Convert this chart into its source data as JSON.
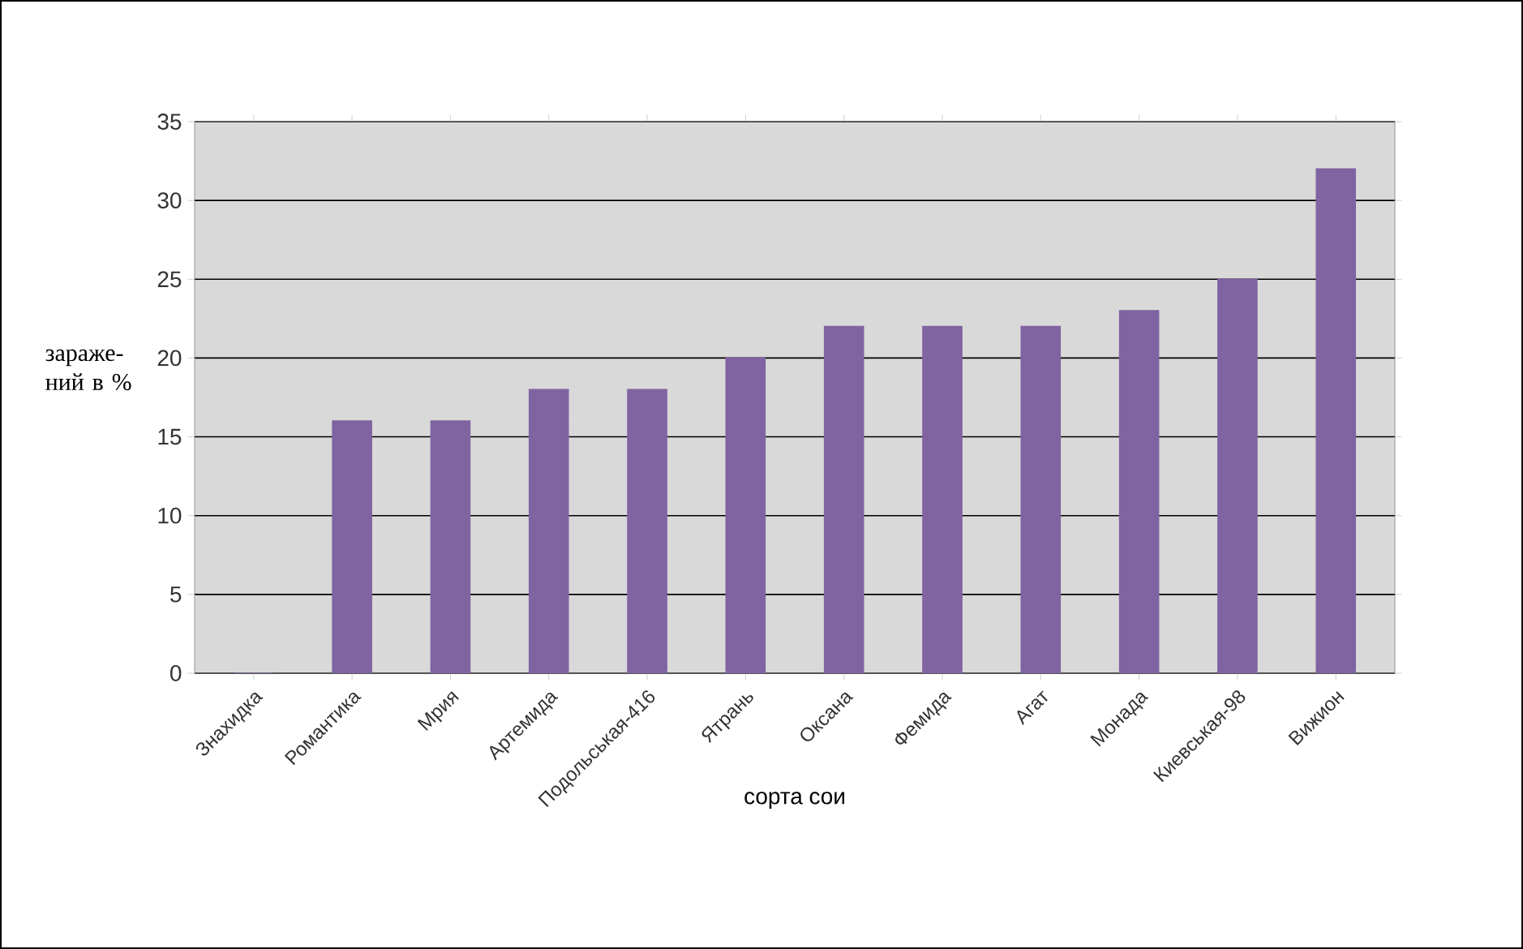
{
  "chart_data": {
    "type": "bar",
    "xlabel": "сорта сои",
    "ylabel": "зараже-ний в %",
    "categories": [
      "Знахидка",
      "Романтика",
      "Мрия",
      "Артемида",
      "Подольськая-416",
      "Ятрань",
      "Оксана",
      "Фемида",
      "Агат",
      "Монада",
      "Киевськая-98",
      "Вижион"
    ],
    "values": [
      0,
      16,
      16,
      18,
      18,
      20,
      22,
      22,
      22,
      23,
      25,
      32
    ],
    "color": "#8064a2",
    "ylim": [
      0,
      35
    ],
    "yticks": [
      0,
      5,
      10,
      15,
      20,
      25,
      30,
      35
    ],
    "grid": "y"
  }
}
